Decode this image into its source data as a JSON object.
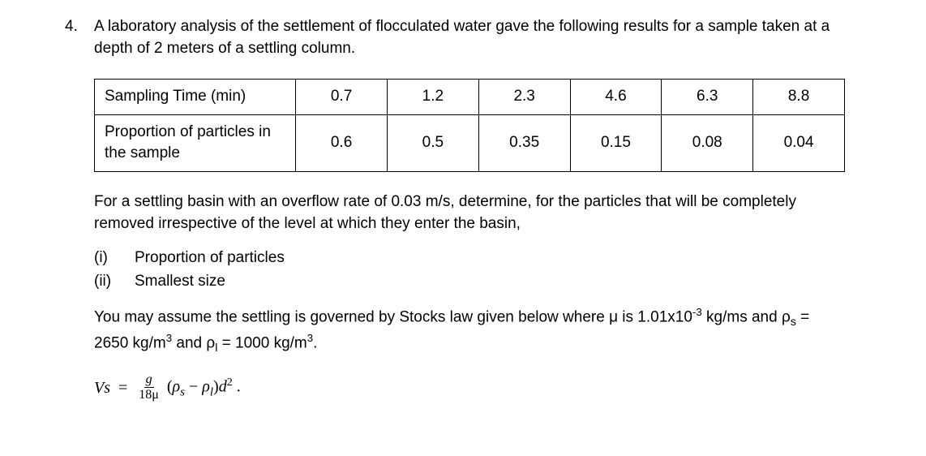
{
  "question": {
    "number": "4.",
    "intro": "A laboratory analysis of the settlement of flocculated water gave the following results for a sample taken at a depth of 2 meters of a settling column."
  },
  "table": {
    "row1_header": "Sampling Time (min)",
    "row1_values": [
      "0.7",
      "1.2",
      "2.3",
      "4.6",
      "6.3",
      "8.8"
    ],
    "row2_header": "Proportion of particles in the sample",
    "row2_values": [
      "0.6",
      "0.5",
      "0.35",
      "0.15",
      "0.08",
      "0.04"
    ]
  },
  "instruction": "For a settling basin with an overflow rate of 0.03 m/s, determine, for the particles that will be completely removed irrespective of the level at which they enter the basin,",
  "subparts": {
    "i_label": "(i)",
    "i_text": "Proportion of particles",
    "ii_label": "(ii)",
    "ii_text": "Smallest size"
  },
  "assumption_pre": "You may assume the settling is governed by Stocks law given below where μ is 1.01x10",
  "assumption_exp": "-3",
  "assumption_mid": " kg/ms and ρ",
  "assumption_sub_s": "s",
  "assumption_mid2": " = 2650 kg/m",
  "assumption_exp3a": "3",
  "assumption_mid3": " and ρ",
  "assumption_sub_l": "l",
  "assumption_mid4": " = 1000 kg/m",
  "assumption_exp3b": "3",
  "assumption_end": ".",
  "formula": {
    "lhs": "Vs",
    "frac_num": "g",
    "frac_den": "18μ",
    "paren_open": "(",
    "rho_s": "ρ",
    "sub_s": "s",
    "minus": " − ",
    "rho_l": "ρ",
    "sub_l": "l",
    "paren_close": ")",
    "d": "d",
    "exp2": "2",
    "period": " ."
  }
}
